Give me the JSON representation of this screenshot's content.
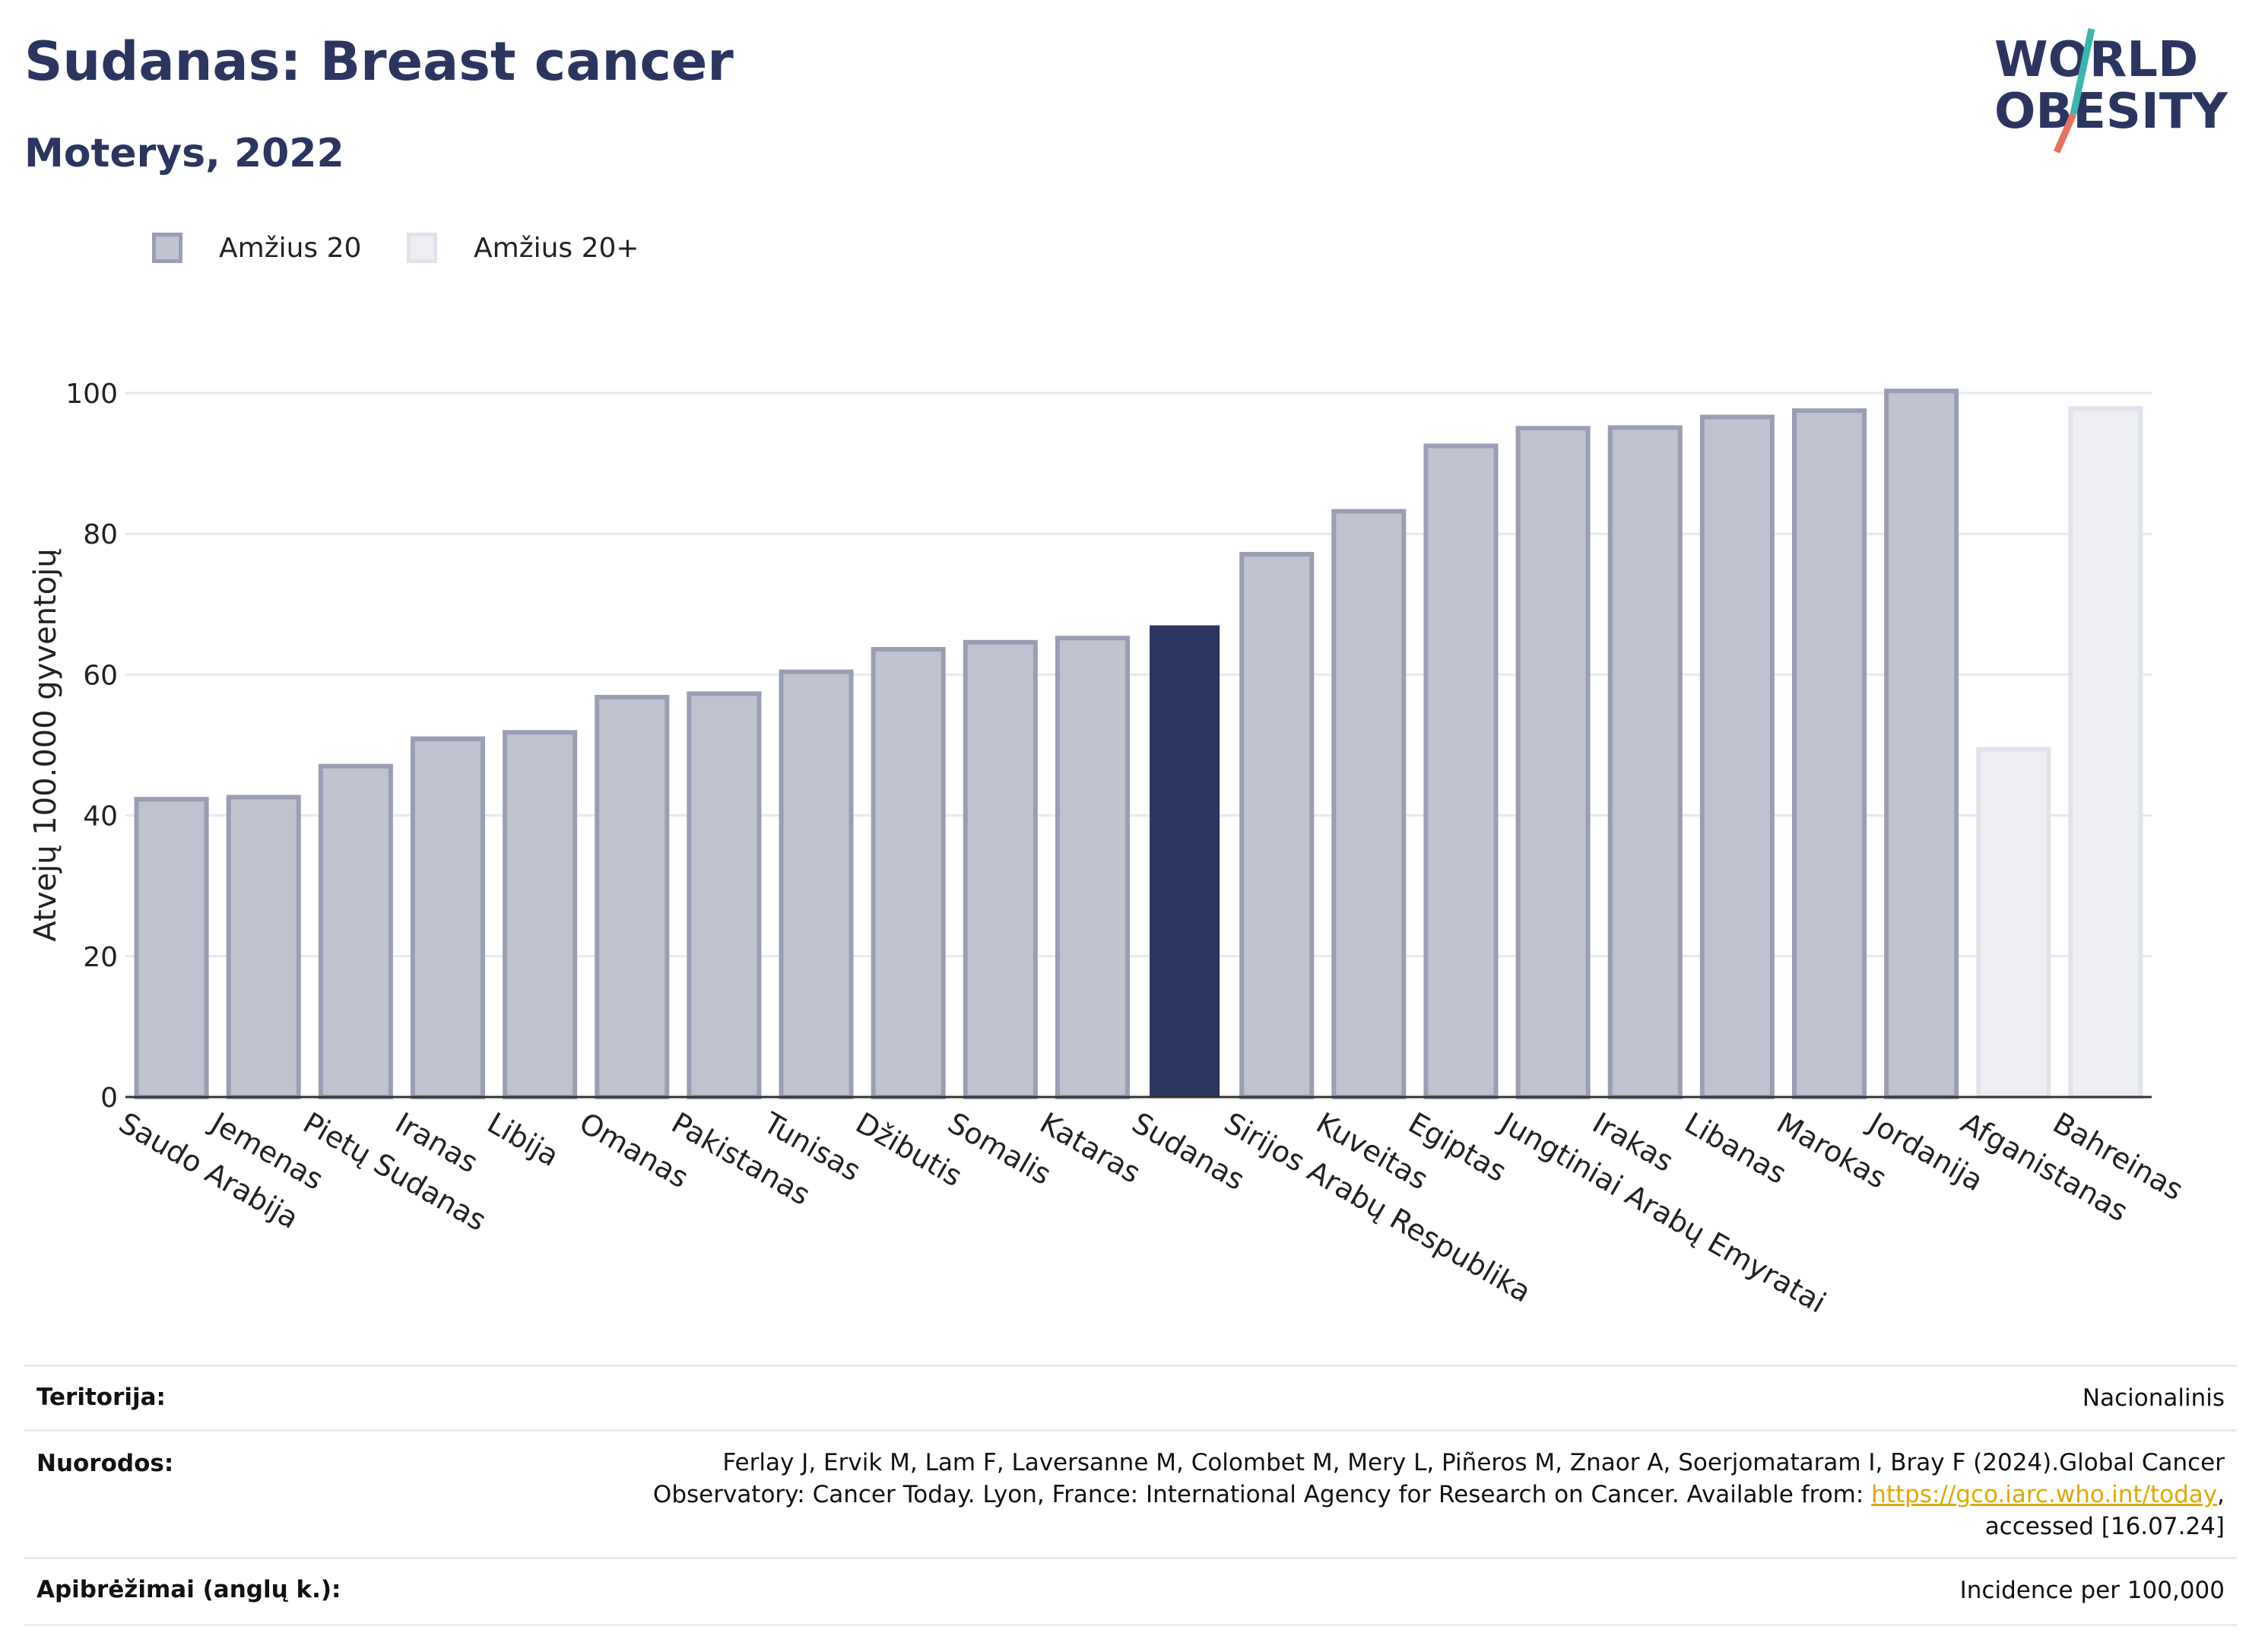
{
  "header": {
    "title": "Sudanas: Breast cancer",
    "subtitle": "Moterys, 2022"
  },
  "logo": {
    "line1": "WORLD",
    "line2": "OBESITY"
  },
  "legend": [
    {
      "label": "Amžius 20",
      "color": "#2b3560"
    },
    {
      "label": "Amžius 20+",
      "color": "#d5d9e2"
    }
  ],
  "chart_data": {
    "type": "bar",
    "ylabel": "Atvejų 100.000 gyventojų",
    "xlabel": "",
    "ylim": [
      0,
      100
    ],
    "yticks": [
      0,
      20,
      40,
      60,
      80,
      100
    ],
    "grid": true,
    "legend_position": "top-left",
    "categories": [
      "Saudo Arabija",
      "Jemenas",
      "Pietų Sudanas",
      "Iranas",
      "Libija",
      "Omanas",
      "Pakistanas",
      "Tunisas",
      "Džibutis",
      "Somalis",
      "Kataras",
      "Sudanas",
      "Sirijos Arabų Respublika",
      "Kuveitas",
      "Egiptas",
      "Jungtiniai Arabų Emyratai",
      "Irakas",
      "Libanas",
      "Marokas",
      "Jordanija",
      "Afganistanas",
      "Bahreinas"
    ],
    "values": [
      42.3,
      42.6,
      47.0,
      50.9,
      51.8,
      56.8,
      57.3,
      60.4,
      63.6,
      64.6,
      65.2,
      67.0,
      77.1,
      83.2,
      92.5,
      95.0,
      95.1,
      96.6,
      97.5,
      100.3,
      49.4,
      97.8
    ],
    "series_group": [
      "Amžius 20",
      "Amžius 20",
      "Amžius 20",
      "Amžius 20",
      "Amžius 20",
      "Amžius 20",
      "Amžius 20",
      "Amžius 20",
      "Amžius 20",
      "Amžius 20",
      "Amžius 20",
      "Amžius 20",
      "Amžius 20",
      "Amžius 20",
      "Amžius 20",
      "Amžius 20",
      "Amžius 20",
      "Amžius 20",
      "Amžius 20",
      "Amžius 20",
      "Amžius 20+",
      "Amžius 20+"
    ],
    "highlight": "Sudanas",
    "colors": {
      "highlight": "#2b3560",
      "age20_fill": "#bfc2cf",
      "age20_stroke": "#9a9eb3",
      "age20plus_fill": "#eeeff3",
      "age20plus_stroke": "#e1e3ea",
      "grid": "#e6e9ee",
      "axis": "#333333"
    }
  },
  "footer": {
    "rows": [
      {
        "key": "Teritorija:",
        "lines": [
          "Nacionalinis"
        ]
      },
      {
        "key": "Nuorodos:",
        "lines": [
          "Ferlay J, Ervik M, Lam F, Laversanne M, Colombet M, Mery L, Piñeros M, Znaor A, Soerjomataram I, Bray F (2024).Global Cancer",
          "Observatory: Cancer Today. Lyon, France: International Agency for Research on Cancer. Available from: ",
          "accessed [16.07.24]"
        ],
        "link": "https://gco.iarc.who.int/today",
        "link_suffix": ","
      },
      {
        "key": "Apibrėžimai (anglų k.):",
        "lines": [
          "Incidence per 100,000"
        ]
      }
    ]
  }
}
